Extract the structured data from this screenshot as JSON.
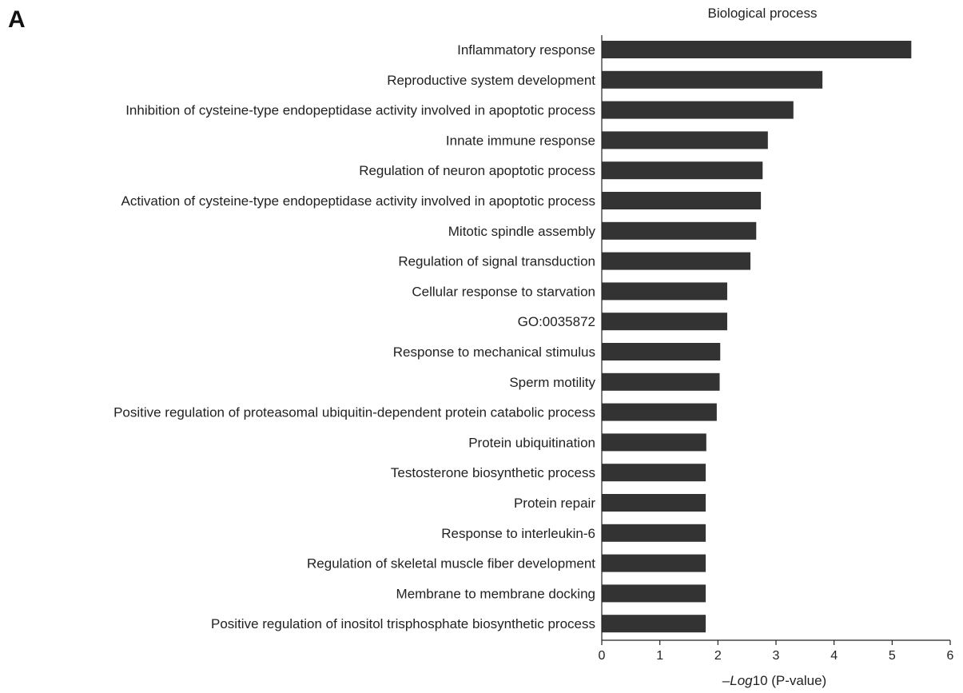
{
  "panel_label": "A",
  "chart_data": {
    "type": "bar",
    "orientation": "horizontal",
    "title": "Biological process",
    "xlabel_italic": "–Log",
    "xlabel_rest": "10 (P-value)",
    "ylabel": "",
    "xlim": [
      0,
      6
    ],
    "xticks": [
      0,
      1,
      2,
      3,
      4,
      5,
      6
    ],
    "grid": false,
    "legend": "none",
    "bar_color": "#333333",
    "categories": [
      "Inflammatory response",
      "Reproductive system development",
      "Inhibition of cysteine-type endopeptidase activity involved in apoptotic process",
      "Innate immune response",
      "Regulation of neuron apoptotic process",
      "Activation of cysteine-type endopeptidase activity involved in apoptotic process",
      "Mitotic spindle assembly",
      "Regulation of signal transduction",
      "Cellular response to starvation",
      "GO:0035872",
      "Response to mechanical stimulus",
      "Sperm motility",
      "Positive regulation of proteasomal ubiquitin-dependent protein catabolic process",
      "Protein ubiquitination",
      "Testosterone biosynthetic process",
      "Protein repair",
      "Response to interleukin-6",
      "Regulation of skeletal muscle fiber development",
      "Membrane to membrane docking",
      "Positive regulation of inositol trisphosphate biosynthetic process"
    ],
    "values": [
      5.33,
      3.8,
      3.3,
      2.86,
      2.77,
      2.74,
      2.66,
      2.56,
      2.16,
      2.16,
      2.04,
      2.03,
      1.98,
      1.8,
      1.79,
      1.79,
      1.79,
      1.79,
      1.79,
      1.79
    ]
  }
}
